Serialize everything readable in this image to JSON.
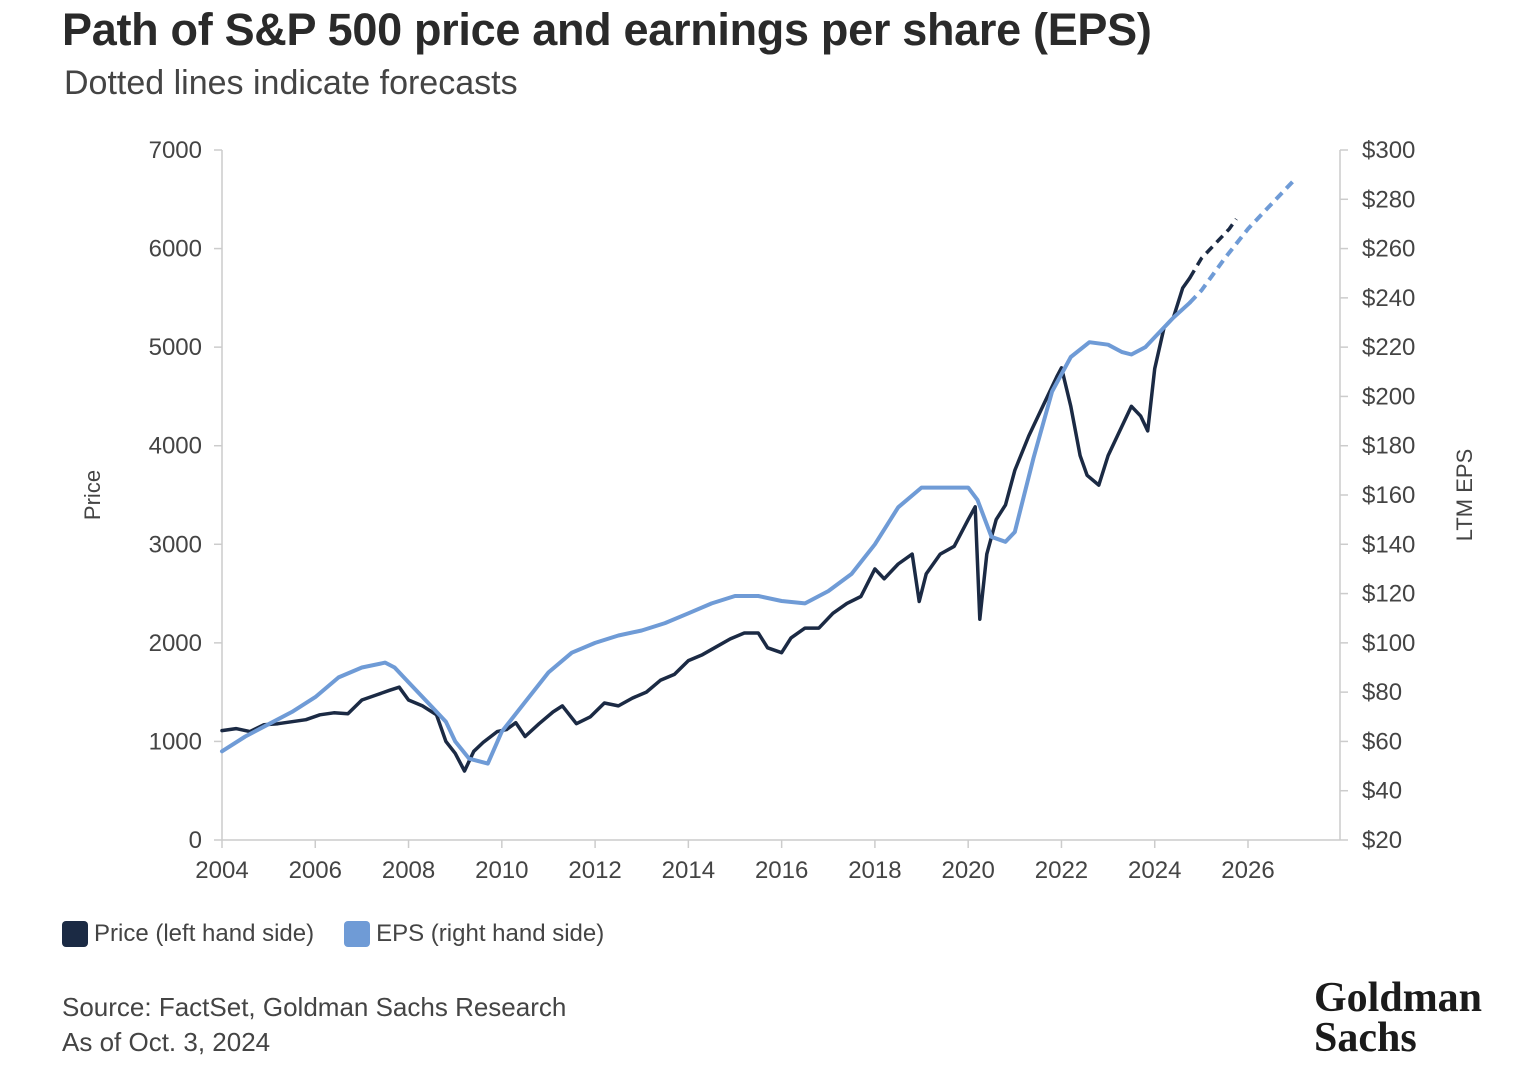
{
  "header": {
    "title": "Path of S&P 500 price and earnings per share (EPS)",
    "subtitle": "Dotted lines indicate forecasts"
  },
  "legend": {
    "price_label": "Price (left hand side)",
    "eps_label": "EPS (right hand side)"
  },
  "footer": {
    "source": "Source: FactSet, Goldman Sachs Research",
    "as_of": "As of Oct. 3, 2024"
  },
  "logo": {
    "line1": "Goldman",
    "line2": "Sachs"
  },
  "colors": {
    "price": "#1b2a44",
    "eps": "#6f9bd6",
    "axis": "#cccccc",
    "text": "#444444"
  },
  "chart_data": {
    "type": "line",
    "title": "Path of S&P 500 price and earnings per share (EPS)",
    "subtitle": "Dotted lines indicate forecasts",
    "xlim": [
      2004,
      2028
    ],
    "x_ticks": [
      2004,
      2006,
      2008,
      2010,
      2012,
      2014,
      2016,
      2018,
      2020,
      2022,
      2024,
      2026
    ],
    "y_left": {
      "label": "Price",
      "lim": [
        0,
        7000
      ],
      "ticks": [
        0,
        1000,
        2000,
        3000,
        4000,
        5000,
        6000,
        7000
      ]
    },
    "y_right": {
      "label": "LTM EPS",
      "lim": [
        20,
        300
      ],
      "ticks": [
        20,
        40,
        60,
        80,
        100,
        120,
        140,
        160,
        180,
        200,
        220,
        240,
        260,
        280,
        300
      ],
      "tick_labels": [
        "$20",
        "$40",
        "$60",
        "$80",
        "$100",
        "$120",
        "$140",
        "$160",
        "$180",
        "$200",
        "$220",
        "$240",
        "$260",
        "$280",
        "$300"
      ]
    },
    "grid": false,
    "legend_position": "bottom-left",
    "series": [
      {
        "name": "Price (left hand side)",
        "axis": "left",
        "actual": [
          [
            2004.0,
            1110
          ],
          [
            2004.3,
            1130
          ],
          [
            2004.6,
            1100
          ],
          [
            2004.9,
            1170
          ],
          [
            2005.2,
            1180
          ],
          [
            2005.5,
            1200
          ],
          [
            2005.8,
            1220
          ],
          [
            2006.1,
            1270
          ],
          [
            2006.4,
            1290
          ],
          [
            2006.7,
            1280
          ],
          [
            2007.0,
            1420
          ],
          [
            2007.3,
            1470
          ],
          [
            2007.6,
            1520
          ],
          [
            2007.8,
            1550
          ],
          [
            2008.0,
            1420
          ],
          [
            2008.3,
            1360
          ],
          [
            2008.6,
            1270
          ],
          [
            2008.8,
            1000
          ],
          [
            2009.0,
            880
          ],
          [
            2009.2,
            700
          ],
          [
            2009.4,
            900
          ],
          [
            2009.6,
            990
          ],
          [
            2009.9,
            1100
          ],
          [
            2010.1,
            1120
          ],
          [
            2010.3,
            1190
          ],
          [
            2010.5,
            1050
          ],
          [
            2010.8,
            1180
          ],
          [
            2011.1,
            1300
          ],
          [
            2011.3,
            1360
          ],
          [
            2011.6,
            1180
          ],
          [
            2011.9,
            1250
          ],
          [
            2012.2,
            1390
          ],
          [
            2012.5,
            1360
          ],
          [
            2012.8,
            1440
          ],
          [
            2013.1,
            1500
          ],
          [
            2013.4,
            1620
          ],
          [
            2013.7,
            1680
          ],
          [
            2014.0,
            1820
          ],
          [
            2014.3,
            1880
          ],
          [
            2014.6,
            1960
          ],
          [
            2014.9,
            2040
          ],
          [
            2015.2,
            2100
          ],
          [
            2015.5,
            2100
          ],
          [
            2015.7,
            1950
          ],
          [
            2016.0,
            1900
          ],
          [
            2016.2,
            2050
          ],
          [
            2016.5,
            2150
          ],
          [
            2016.8,
            2150
          ],
          [
            2017.1,
            2300
          ],
          [
            2017.4,
            2400
          ],
          [
            2017.7,
            2470
          ],
          [
            2018.0,
            2750
          ],
          [
            2018.2,
            2650
          ],
          [
            2018.5,
            2800
          ],
          [
            2018.8,
            2900
          ],
          [
            2018.95,
            2420
          ],
          [
            2019.1,
            2700
          ],
          [
            2019.4,
            2900
          ],
          [
            2019.7,
            2980
          ],
          [
            2020.0,
            3250
          ],
          [
            2020.15,
            3380
          ],
          [
            2020.25,
            2240
          ],
          [
            2020.4,
            2900
          ],
          [
            2020.6,
            3250
          ],
          [
            2020.8,
            3400
          ],
          [
            2021.0,
            3750
          ],
          [
            2021.3,
            4100
          ],
          [
            2021.6,
            4400
          ],
          [
            2021.9,
            4700
          ],
          [
            2022.0,
            4790
          ],
          [
            2022.2,
            4400
          ],
          [
            2022.4,
            3900
          ],
          [
            2022.55,
            3700
          ],
          [
            2022.8,
            3600
          ],
          [
            2023.0,
            3900
          ],
          [
            2023.2,
            4100
          ],
          [
            2023.5,
            4400
          ],
          [
            2023.7,
            4300
          ],
          [
            2023.85,
            4150
          ],
          [
            2024.0,
            4780
          ],
          [
            2024.2,
            5200
          ],
          [
            2024.4,
            5300
          ],
          [
            2024.6,
            5600
          ],
          [
            2024.75,
            5700
          ]
        ],
        "forecast": [
          [
            2024.75,
            5700
          ],
          [
            2025.0,
            5900
          ],
          [
            2025.3,
            6050
          ],
          [
            2025.6,
            6200
          ],
          [
            2025.75,
            6300
          ]
        ]
      },
      {
        "name": "EPS (right hand side)",
        "axis": "right",
        "actual": [
          [
            2004.0,
            56
          ],
          [
            2004.5,
            62
          ],
          [
            2005.0,
            67
          ],
          [
            2005.5,
            72
          ],
          [
            2006.0,
            78
          ],
          [
            2006.5,
            86
          ],
          [
            2007.0,
            90
          ],
          [
            2007.5,
            92
          ],
          [
            2007.7,
            90
          ],
          [
            2008.0,
            84
          ],
          [
            2008.5,
            74
          ],
          [
            2008.8,
            68
          ],
          [
            2009.0,
            60
          ],
          [
            2009.3,
            53
          ],
          [
            2009.7,
            51
          ],
          [
            2010.0,
            64
          ],
          [
            2010.5,
            76
          ],
          [
            2011.0,
            88
          ],
          [
            2011.5,
            96
          ],
          [
            2012.0,
            100
          ],
          [
            2012.5,
            103
          ],
          [
            2013.0,
            105
          ],
          [
            2013.5,
            108
          ],
          [
            2014.0,
            112
          ],
          [
            2014.5,
            116
          ],
          [
            2015.0,
            119
          ],
          [
            2015.5,
            119
          ],
          [
            2016.0,
            117
          ],
          [
            2016.5,
            116
          ],
          [
            2017.0,
            121
          ],
          [
            2017.5,
            128
          ],
          [
            2018.0,
            140
          ],
          [
            2018.5,
            155
          ],
          [
            2019.0,
            163
          ],
          [
            2019.5,
            163
          ],
          [
            2020.0,
            163
          ],
          [
            2020.2,
            158
          ],
          [
            2020.5,
            143
          ],
          [
            2020.8,
            141
          ],
          [
            2021.0,
            145
          ],
          [
            2021.4,
            175
          ],
          [
            2021.8,
            202
          ],
          [
            2022.2,
            216
          ],
          [
            2022.6,
            222
          ],
          [
            2023.0,
            221
          ],
          [
            2023.3,
            218
          ],
          [
            2023.5,
            217
          ],
          [
            2023.8,
            220
          ],
          [
            2024.0,
            224
          ],
          [
            2024.4,
            232
          ],
          [
            2024.75,
            238
          ]
        ],
        "forecast": [
          [
            2024.75,
            238
          ],
          [
            2025.0,
            243
          ],
          [
            2025.5,
            256
          ],
          [
            2026.0,
            268
          ],
          [
            2026.5,
            278
          ],
          [
            2027.0,
            288
          ]
        ]
      }
    ]
  }
}
